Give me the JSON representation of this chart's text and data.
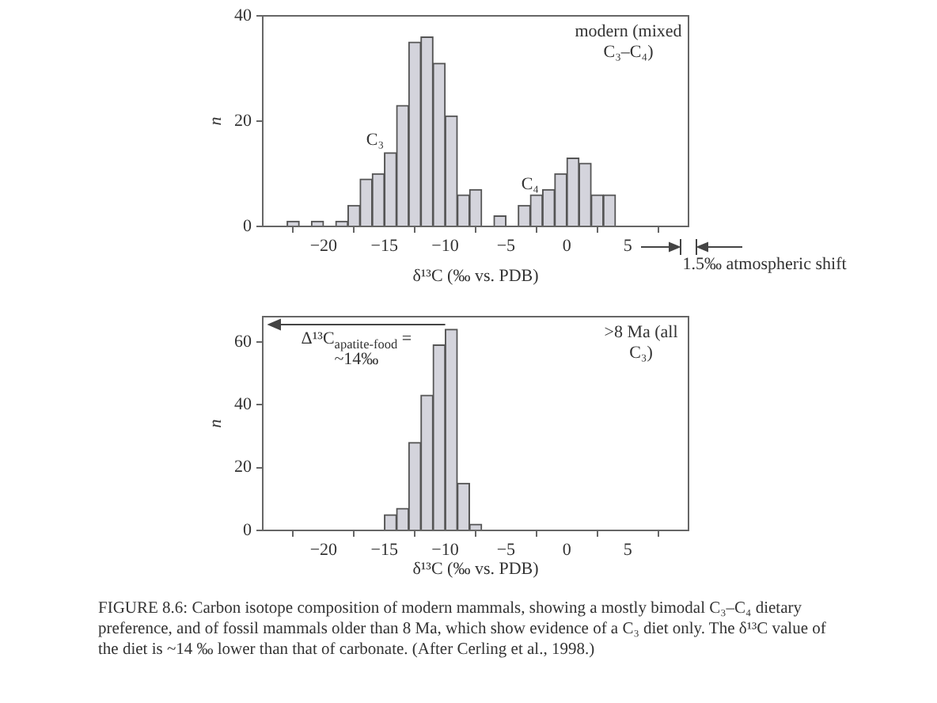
{
  "chart_data": [
    {
      "type": "histogram",
      "xlabel": "δ¹³C (‰ vs. PDB)",
      "ylabel": "n",
      "color": "#d4d4dc",
      "bins": [
        -23,
        -22,
        -21,
        -20,
        -19,
        -18,
        -17,
        -16,
        -15,
        -14,
        -13,
        -12,
        -11,
        -10,
        -9,
        -8,
        -7,
        -6,
        -5,
        -4,
        -3,
        -2,
        -1,
        0,
        1,
        2,
        3,
        4
      ],
      "values": [
        1,
        0,
        1,
        0,
        1,
        4,
        9,
        10,
        14,
        23,
        35,
        36,
        31,
        21,
        6,
        7,
        0,
        2,
        0,
        4,
        6,
        7,
        10,
        13,
        12,
        6,
        6
      ],
      "xlim": [
        -25,
        10
      ],
      "xticks": [
        -20,
        -15,
        -10,
        -5,
        0,
        5
      ],
      "ylim": [
        0,
        40
      ],
      "yticks": [
        0,
        20,
        40
      ],
      "annotations": [
        "C₃",
        "C₄",
        "modern (mixed C₃–C₄)",
        "1.5‰ atmospheric shift"
      ]
    },
    {
      "type": "histogram",
      "xlabel": "δ¹³C (‰ vs. PDB)",
      "ylabel": "n",
      "color": "#d4d4dc",
      "bins": [
        -15,
        -14,
        -13,
        -12,
        -11,
        -10,
        -9,
        -8,
        -7
      ],
      "values": [
        5,
        7,
        28,
        43,
        59,
        64,
        15,
        2
      ],
      "xlim": [
        -25,
        10
      ],
      "xticks": [
        -20,
        -15,
        -10,
        -5,
        0,
        5
      ],
      "ylim": [
        0,
        68
      ],
      "yticks": [
        0,
        20,
        40,
        60
      ],
      "annotations": [
        "Δ¹³C$_{apatite-food}$ = ~14‰",
        ">8 Ma (all C₃)",
        "FIGURE 8.6: Carbon isotope composition of modern mammals, showing a mostly bimodal C₃–C₄ dietary preference, and of fossil mammals older than 8 Ma, which show evidence of a C₃ diet only. The δ¹³C value of the diet is ~14 ‰ lower than that of carbonate. (After Cerling et al., 1998.)"
      ]
    }
  ]
}
